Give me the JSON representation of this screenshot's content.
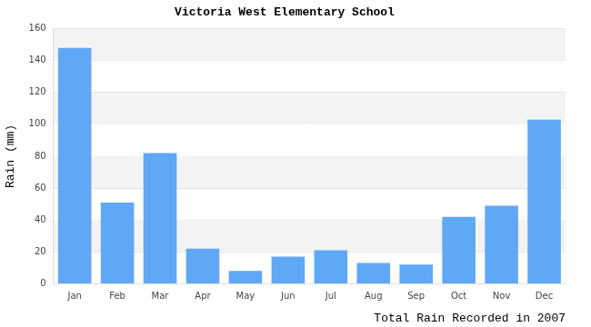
{
  "chart_data": {
    "type": "bar",
    "title": "Victoria West Elementary School",
    "y_label": "Rain (mm)",
    "x_label": "Total Rain Recorded in 2007",
    "categories": [
      "Jan",
      "Feb",
      "Mar",
      "Apr",
      "May",
      "Jun",
      "Jul",
      "Aug",
      "Sep",
      "Oct",
      "Nov",
      "Dec"
    ],
    "values": [
      148,
      51,
      82,
      22,
      8,
      17,
      21,
      13,
      12,
      42,
      49,
      103
    ],
    "color": "#5fa8f5",
    "ylim": [
      0,
      160
    ],
    "yticks": [
      0,
      20,
      40,
      60,
      80,
      100,
      120,
      140,
      160
    ],
    "grid": true
  }
}
